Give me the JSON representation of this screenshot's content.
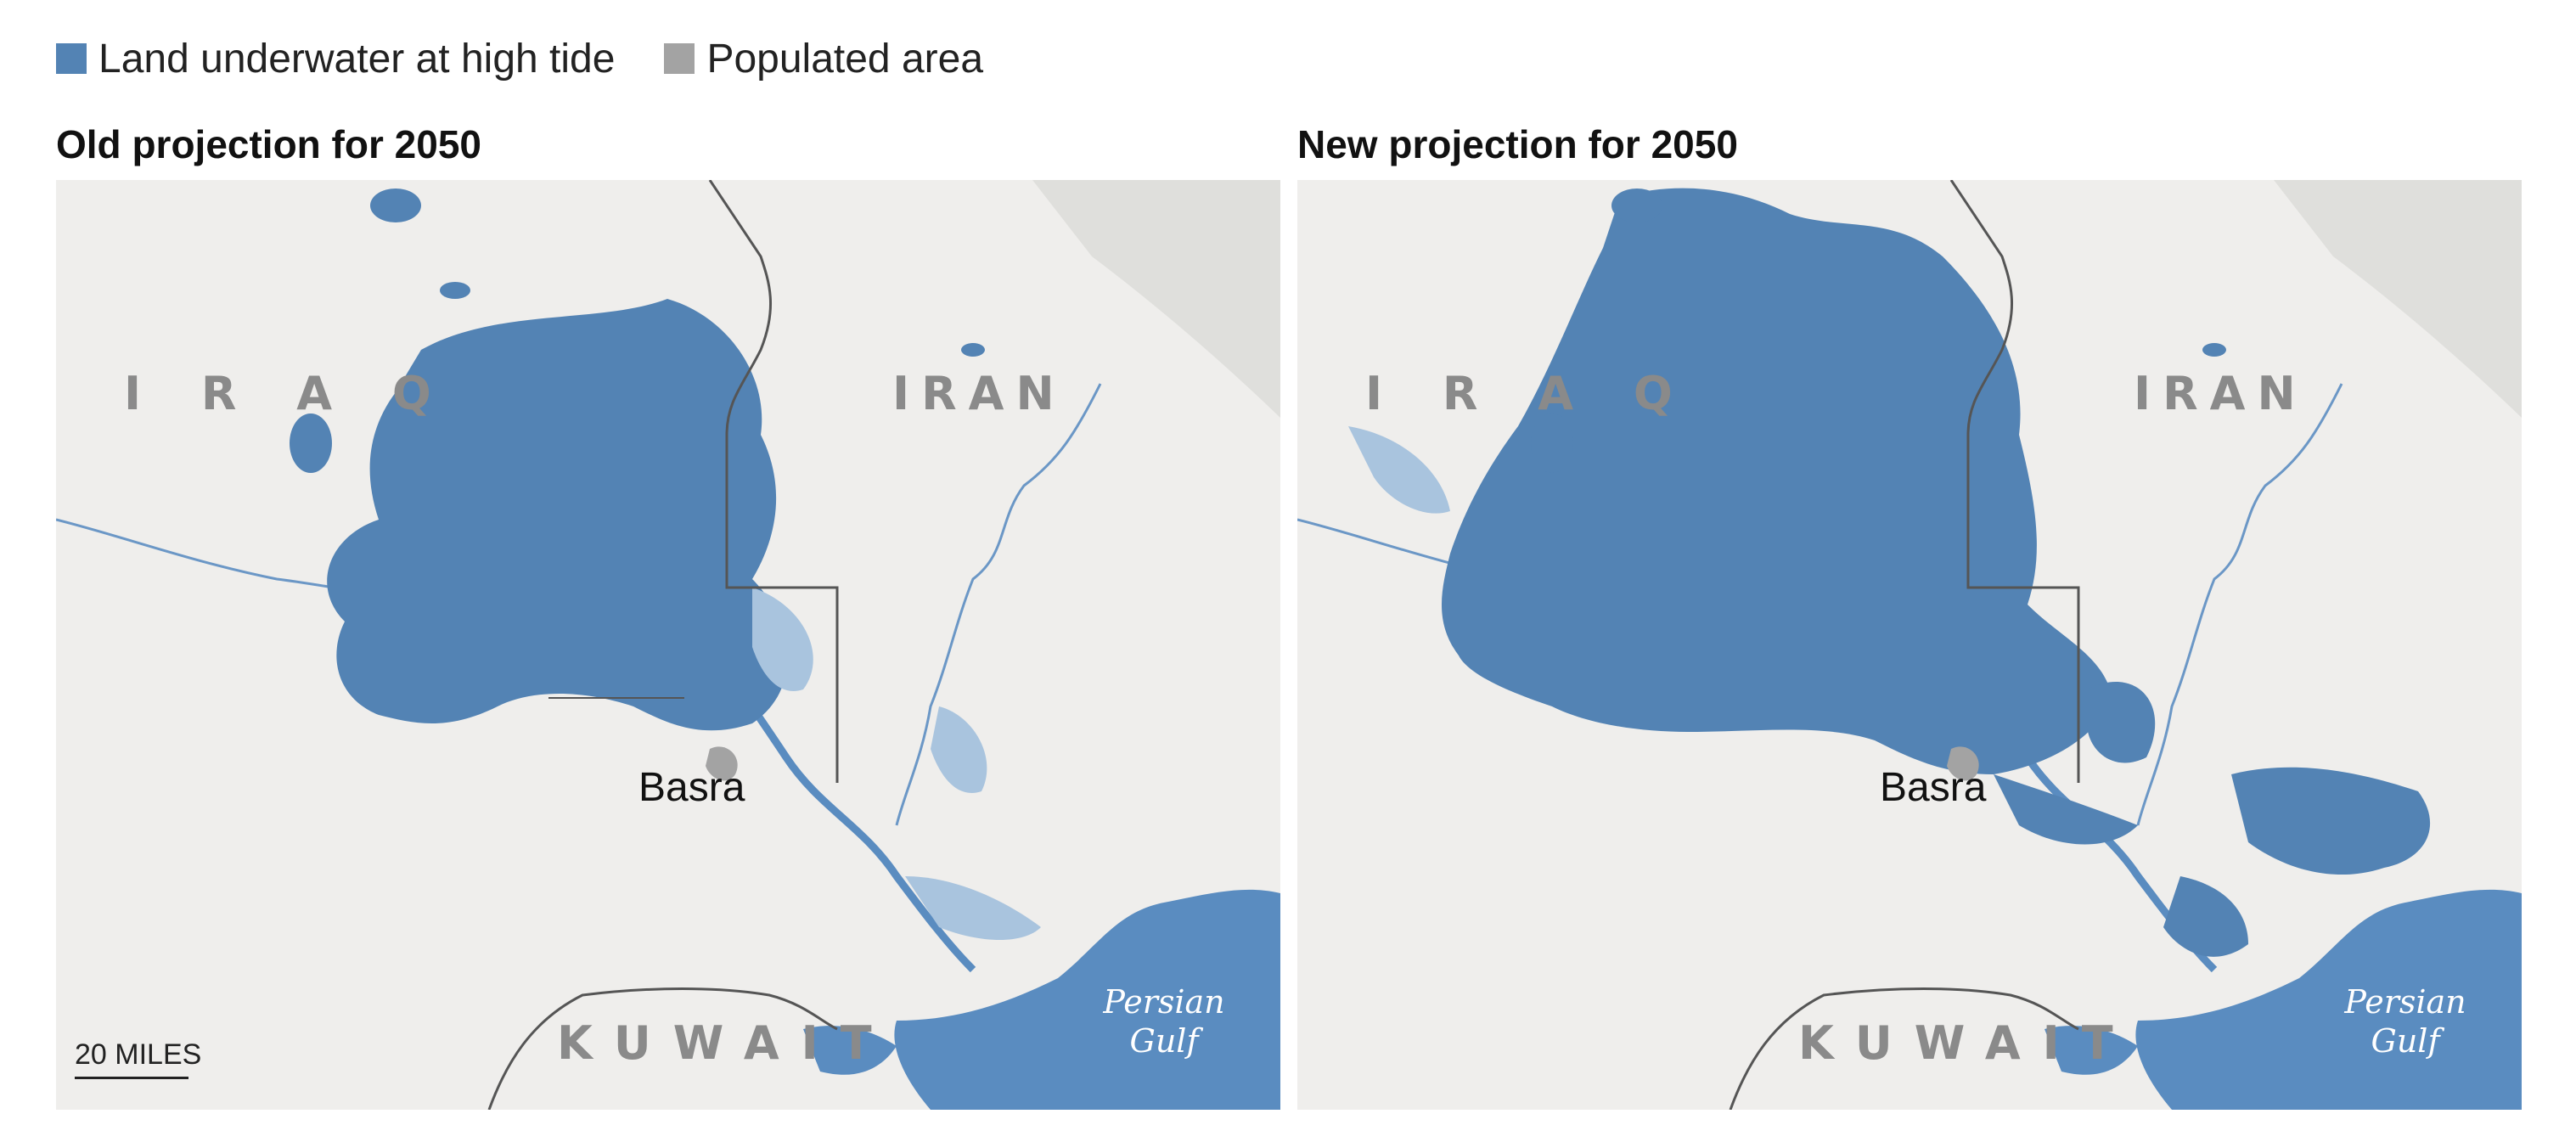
{
  "legend": [
    {
      "label": "Land underwater at high tide",
      "color": "#5383b4"
    },
    {
      "label": "Populated area",
      "color": "#a3a3a3"
    }
  ],
  "panels": [
    {
      "title": "Old projection for 2050",
      "labels": {
        "iraq": "I R A Q",
        "iran": "IRAN",
        "kuwait": "KUWAIT",
        "city": "Basra",
        "gulf_line1": "Persian",
        "gulf_line2": "Gulf"
      },
      "scale": "20 MILES"
    },
    {
      "title": "New projection for 2050",
      "labels": {
        "iraq": "I R A Q",
        "iran": "IRAN",
        "kuwait": "KUWAIT",
        "city": "Basra",
        "gulf_line1": "Persian",
        "gulf_line2": "Gulf"
      }
    }
  ],
  "colors": {
    "water": "#5a8cc0",
    "flood": "#5383b4",
    "flood_light": "#a9c4de",
    "land": "#efeeec",
    "populated": "#a3a3a3",
    "border": "#555555"
  }
}
